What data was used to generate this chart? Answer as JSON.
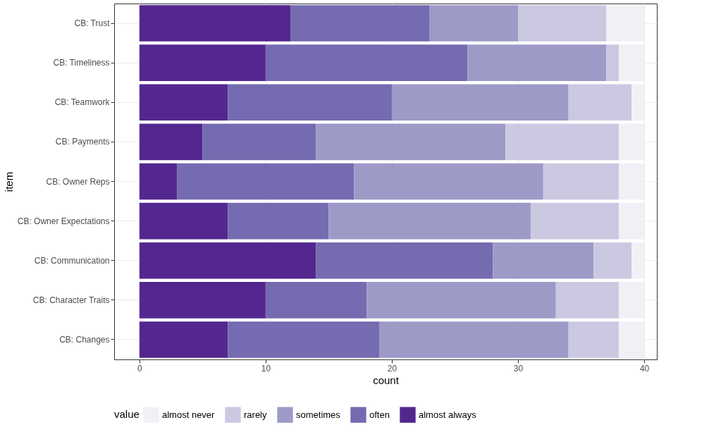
{
  "chart_data": {
    "type": "bar",
    "orientation": "horizontal",
    "stacked": true,
    "xlabel": "count",
    "ylabel": "item",
    "legend_title": "value",
    "categories": [
      "CB: Trust",
      "CB: Timeliness",
      "CB: Teamwork",
      "CB: Payments",
      "CB: Owner Reps",
      "CB: Owner Expectations",
      "CB: Communication",
      "CB: Character Traits",
      "CB: Changes"
    ],
    "series": [
      {
        "name": "almost always",
        "color": "#54278f",
        "values": [
          12,
          10,
          7,
          5,
          3,
          7,
          14,
          10,
          7
        ]
      },
      {
        "name": "often",
        "color": "#756bb1",
        "values": [
          11,
          16,
          13,
          9,
          14,
          8,
          14,
          8,
          12
        ]
      },
      {
        "name": "sometimes",
        "color": "#9e9ac8",
        "values": [
          7,
          11,
          14,
          15,
          15,
          16,
          8,
          15,
          15
        ]
      },
      {
        "name": "rarely",
        "color": "#cbc9e2",
        "values": [
          7,
          1,
          5,
          9,
          6,
          7,
          3,
          5,
          4
        ]
      },
      {
        "name": "almost never",
        "color": "#f2f0f7",
        "values": [
          3,
          2,
          1,
          2,
          2,
          2,
          1,
          2,
          2
        ]
      }
    ],
    "xlim": [
      -2,
      41
    ],
    "xticks": [
      0,
      10,
      20,
      30,
      40
    ],
    "grid": true,
    "legend": "bottom"
  }
}
